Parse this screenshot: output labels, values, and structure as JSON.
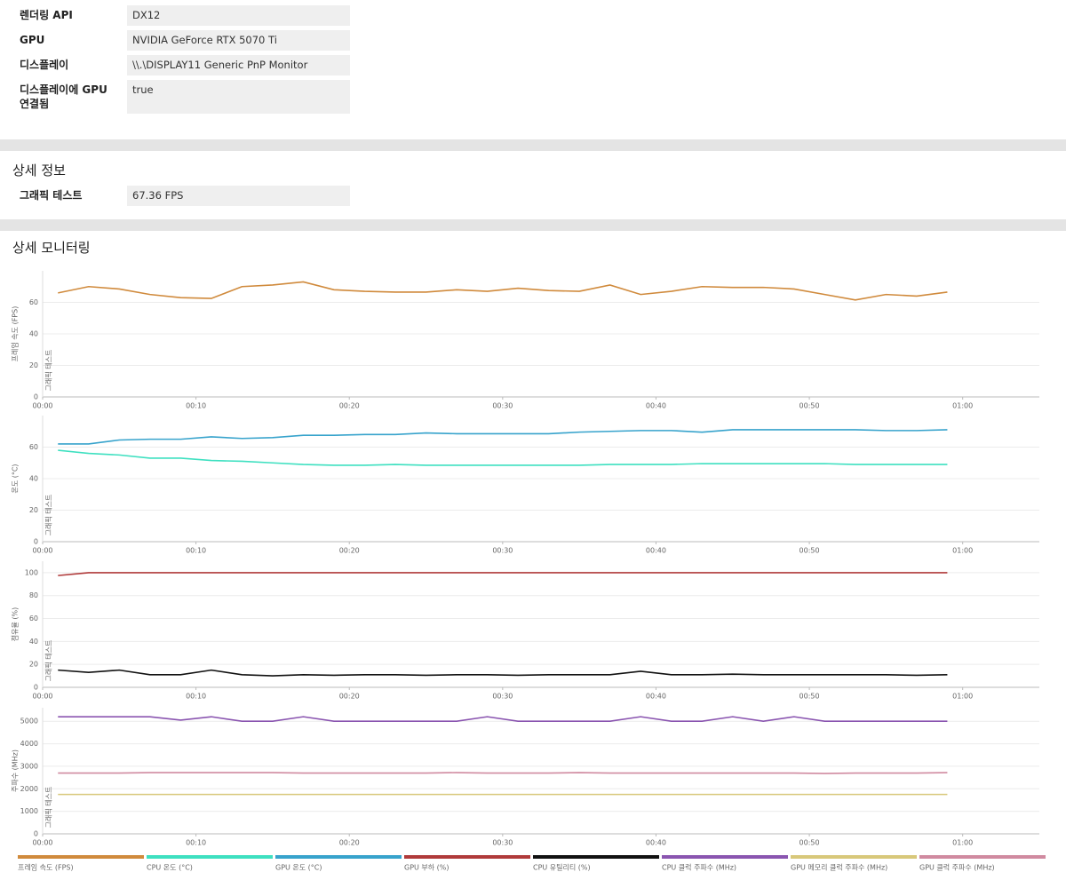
{
  "info": {
    "rows": [
      [
        "렌더링 API",
        "DX12"
      ],
      [
        "GPU",
        "NVIDIA GeForce RTX 5070 Ti"
      ],
      [
        "디스플레이",
        "\\\\.\\DISPLAY11 Generic PnP Monitor"
      ],
      [
        "디스플레이에 GPU 연결됨",
        "true"
      ]
    ]
  },
  "detail": {
    "title": "상세 정보",
    "rows": [
      [
        "그래픽 테스트",
        "67.36 FPS"
      ]
    ]
  },
  "monitoring": {
    "title": "상세 모니터링"
  },
  "chart_data": [
    {
      "type": "line",
      "ylabel": "프레임 속도 (FPS)",
      "annotation": "그래픽 테스트",
      "grid": true,
      "x": [
        1,
        3,
        5,
        7,
        9,
        11,
        13,
        15,
        17,
        19,
        21,
        23,
        25,
        27,
        29,
        31,
        33,
        35,
        37,
        39,
        41,
        43,
        45,
        47,
        49,
        51,
        53,
        55,
        57,
        59
      ],
      "xlim": [
        0,
        65
      ],
      "xticks": [
        {
          "value": 0,
          "label": "00:00"
        },
        {
          "value": 10,
          "label": "00:10"
        },
        {
          "value": 20,
          "label": "00:20"
        },
        {
          "value": 30,
          "label": "00:30"
        },
        {
          "value": 40,
          "label": "00:40"
        },
        {
          "value": 50,
          "label": "00:50"
        },
        {
          "value": 60,
          "label": "01:00"
        }
      ],
      "ylim": [
        0,
        80
      ],
      "yticks": [
        0,
        20,
        40,
        60
      ],
      "series": [
        {
          "name": "프레임 속도 (FPS)",
          "color": "#d08a3c",
          "values": [
            66,
            70,
            68.5,
            65,
            63,
            62.5,
            70,
            71,
            73,
            68,
            67,
            66.5,
            66.5,
            68,
            67,
            69,
            67.5,
            67,
            71,
            65,
            67,
            70,
            69.5,
            69.5,
            68.5,
            65,
            61.5,
            65,
            64,
            66.5
          ]
        }
      ]
    },
    {
      "type": "line",
      "ylabel": "온도 (°C)",
      "annotation": "그래픽 테스트",
      "grid": true,
      "x": [
        1,
        3,
        5,
        7,
        9,
        11,
        13,
        15,
        17,
        19,
        21,
        23,
        25,
        27,
        29,
        31,
        33,
        35,
        37,
        39,
        41,
        43,
        45,
        47,
        49,
        51,
        53,
        55,
        57,
        59
      ],
      "xlim": [
        0,
        65
      ],
      "xticks": [
        {
          "value": 0,
          "label": "00:00"
        },
        {
          "value": 10,
          "label": "00:10"
        },
        {
          "value": 20,
          "label": "00:20"
        },
        {
          "value": 30,
          "label": "00:30"
        },
        {
          "value": 40,
          "label": "00:40"
        },
        {
          "value": 50,
          "label": "00:50"
        },
        {
          "value": 60,
          "label": "01:00"
        }
      ],
      "ylim": [
        0,
        80
      ],
      "yticks": [
        0,
        20,
        40,
        60
      ],
      "series": [
        {
          "name": "CPU 온도 (°C)",
          "color": "#3ee0c0",
          "values": [
            58,
            56,
            55,
            53,
            53,
            51.5,
            51,
            50,
            49,
            48.5,
            48.5,
            49,
            48.5,
            48.5,
            48.5,
            48.5,
            48.5,
            48.5,
            49,
            49,
            49,
            49.5,
            49.5,
            49.5,
            49.5,
            49.5,
            49,
            49,
            49,
            49
          ]
        },
        {
          "name": "GPU 온도 (°C)",
          "color": "#37a3cc",
          "values": [
            62,
            62,
            64.5,
            65,
            65,
            66.5,
            65.5,
            66,
            67.5,
            67.5,
            68,
            68,
            69,
            68.5,
            68.5,
            68.5,
            68.5,
            69.5,
            70,
            70.5,
            70.5,
            69.5,
            71,
            71,
            71,
            71,
            71,
            70.5,
            70.5,
            71
          ]
        }
      ]
    },
    {
      "type": "line",
      "ylabel": "점유율 (%)",
      "annotation": "그래픽 테스트",
      "grid": true,
      "x": [
        1,
        3,
        5,
        7,
        9,
        11,
        13,
        15,
        17,
        19,
        21,
        23,
        25,
        27,
        29,
        31,
        33,
        35,
        37,
        39,
        41,
        43,
        45,
        47,
        49,
        51,
        53,
        55,
        57,
        59
      ],
      "xlim": [
        0,
        65
      ],
      "xticks": [
        {
          "value": 0,
          "label": "00:00"
        },
        {
          "value": 10,
          "label": "00:10"
        },
        {
          "value": 20,
          "label": "00:20"
        },
        {
          "value": 30,
          "label": "00:30"
        },
        {
          "value": 40,
          "label": "00:40"
        },
        {
          "value": 50,
          "label": "00:50"
        },
        {
          "value": 60,
          "label": "01:00"
        }
      ],
      "ylim": [
        0,
        110
      ],
      "yticks": [
        0,
        20,
        40,
        60,
        80,
        100
      ],
      "series": [
        {
          "name": "GPU 부하 (%)",
          "color": "#b03a3a",
          "values": [
            97.5,
            100,
            100,
            100,
            100,
            100,
            100,
            100,
            100,
            100,
            100,
            100,
            100,
            100,
            100,
            100,
            100,
            100,
            100,
            100,
            100,
            100,
            100,
            100,
            100,
            100,
            100,
            100,
            100,
            100
          ]
        },
        {
          "name": "CPU 유틸리티 (%)",
          "color": "#111111",
          "values": [
            15,
            13,
            15,
            11,
            11,
            15,
            11,
            10,
            11,
            10.5,
            11,
            11,
            10.5,
            11,
            11,
            10.5,
            11,
            11,
            11,
            14,
            11,
            11,
            11.5,
            11,
            11,
            11,
            11,
            11,
            10.5,
            11
          ]
        }
      ]
    },
    {
      "type": "line",
      "ylabel": "주파수 (MHz)",
      "annotation": "그래픽 테스트",
      "grid": true,
      "x": [
        1,
        3,
        5,
        7,
        9,
        11,
        13,
        15,
        17,
        19,
        21,
        23,
        25,
        27,
        29,
        31,
        33,
        35,
        37,
        39,
        41,
        43,
        45,
        47,
        49,
        51,
        53,
        55,
        57,
        59
      ],
      "xlim": [
        0,
        65
      ],
      "xticks": [
        {
          "value": 0,
          "label": "00:00"
        },
        {
          "value": 10,
          "label": "00:10"
        },
        {
          "value": 20,
          "label": "00:20"
        },
        {
          "value": 30,
          "label": "00:30"
        },
        {
          "value": 40,
          "label": "00:40"
        },
        {
          "value": 50,
          "label": "00:50"
        },
        {
          "value": 60,
          "label": "01:00"
        }
      ],
      "ylim": [
        0,
        5600
      ],
      "yticks": [
        0,
        1000,
        2000,
        3000,
        4000,
        5000
      ],
      "series": [
        {
          "name": "CPU 클럭 주파수 (MHz)",
          "color": "#8a55b0",
          "values": [
            5200,
            5200,
            5200,
            5200,
            5050,
            5200,
            5000,
            5000,
            5200,
            5000,
            5000,
            5000,
            5000,
            5000,
            5200,
            5000,
            5000,
            5000,
            5000,
            5200,
            5000,
            5000,
            5200,
            5000,
            5200,
            5000,
            5000,
            5000,
            5000,
            5000
          ]
        },
        {
          "name": "GPU 메모리 클럭 주파수 (MHz)",
          "color": "#d8c87a",
          "values": [
            1750,
            1750,
            1750,
            1750,
            1750,
            1750,
            1750,
            1750,
            1750,
            1750,
            1750,
            1750,
            1750,
            1750,
            1750,
            1750,
            1750,
            1750,
            1750,
            1750,
            1750,
            1750,
            1750,
            1750,
            1750,
            1750,
            1750,
            1750,
            1750,
            1750
          ]
        },
        {
          "name": "GPU 클럭 주파수 (MHz)",
          "color": "#d08aa0",
          "values": [
            2700,
            2700,
            2700,
            2720,
            2720,
            2720,
            2720,
            2720,
            2700,
            2700,
            2700,
            2700,
            2700,
            2720,
            2700,
            2700,
            2700,
            2720,
            2700,
            2700,
            2700,
            2700,
            2700,
            2700,
            2700,
            2680,
            2700,
            2700,
            2700,
            2720
          ]
        }
      ]
    }
  ]
}
